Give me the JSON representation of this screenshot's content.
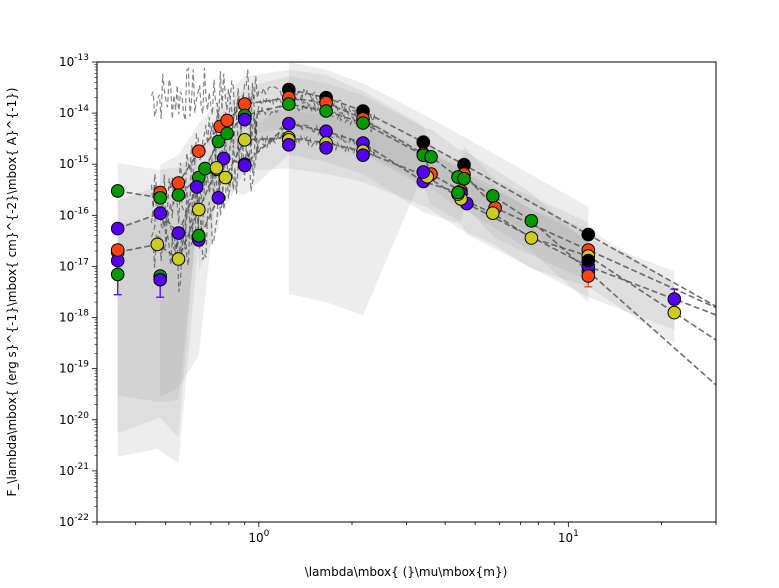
{
  "chart_data": {
    "type": "scatter",
    "title": "",
    "xlabel": "\\lambda\\mbox{ (}\\mu\\mbox{m})",
    "ylabel": "F_\\lambda\\mbox{ (erg s}^{-1}\\mbox{ cm}^{-2}\\mbox{ A}^{-1})",
    "x_scale": "log",
    "y_scale": "log",
    "xlim": [
      0.3,
      30
    ],
    "ylim": [
      1e-22,
      1e-13
    ],
    "x_ticks": [
      {
        "value": 1,
        "label": "10^0"
      },
      {
        "value": 10,
        "label": "10^1"
      }
    ],
    "y_ticks": [
      {
        "value": 1e-13,
        "label": "10^-13"
      },
      {
        "value": 1e-14,
        "label": "10^-14"
      },
      {
        "value": 1e-15,
        "label": "10^-15"
      },
      {
        "value": 1e-16,
        "label": "10^-16"
      },
      {
        "value": 1e-17,
        "label": "10^-17"
      },
      {
        "value": 1e-18,
        "label": "10^-18"
      },
      {
        "value": 1e-19,
        "label": "10^-19"
      },
      {
        "value": 1e-20,
        "label": "10^-20"
      },
      {
        "value": 1e-21,
        "label": "10^-21"
      },
      {
        "value": 1e-22,
        "label": "10^-22"
      }
    ],
    "grid": false,
    "legend": "none",
    "series": [
      {
        "color": "#000000",
        "x": [
          1.25,
          1.65,
          2.17,
          3.4,
          4.6,
          11.6
        ],
        "y": [
          2.9e-14,
          2e-14,
          1.1e-14,
          2.7e-15,
          9.8e-16,
          4.2e-17
        ]
      },
      {
        "color": "#ff4411",
        "x": [
          0.48,
          0.55,
          0.64,
          0.75,
          0.79,
          0.9,
          1.25,
          1.65,
          2.17,
          3.4,
          3.6,
          4.5,
          4.6,
          5.8,
          11.6
        ],
        "y": [
          2.8e-16,
          4.3e-16,
          1.8e-15,
          5.5e-15,
          7.2e-15,
          1.5e-14,
          2e-14,
          1.6e-14,
          7.7e-15,
          1.6e-15,
          6.4e-16,
          3e-16,
          6.4e-16,
          1.4e-16,
          2.1e-17
        ]
      },
      {
        "color": "#009900",
        "x": [
          0.35,
          0.48,
          0.55,
          0.64,
          0.67,
          0.74,
          0.79,
          0.9,
          1.25,
          1.65,
          2.17,
          3.4,
          3.6,
          4.4,
          4.6,
          5.7,
          7.6,
          11.6
        ],
        "y": [
          3e-16,
          2.2e-16,
          2.5e-16,
          5.5e-16,
          8.2e-16,
          2.8e-15,
          4e-15,
          9e-15,
          1.5e-14,
          1.1e-14,
          6.4e-15,
          1.5e-15,
          1.4e-15,
          5.6e-16,
          5.2e-16,
          2.4e-16,
          7.8e-17,
          8e-18
        ]
      },
      {
        "color": "#5500ee",
        "x": [
          0.35,
          0.48,
          0.55,
          0.63,
          0.64,
          0.74,
          0.77,
          0.9,
          1.25,
          1.65,
          2.17,
          3.4,
          4.5,
          4.7,
          11.6,
          22
        ],
        "y": [
          5.5e-17,
          1.1e-16,
          4.5e-17,
          3.6e-16,
          3.3e-17,
          2.2e-16,
          1.3e-15,
          1e-15,
          6.2e-15,
          4.4e-15,
          2.6e-15,
          4.6e-16,
          2.7e-16,
          1.7e-16,
          1e-17,
          2.3e-18
        ]
      },
      {
        "color": "#cccc22",
        "x": [
          0.35,
          0.47,
          0.55,
          0.64,
          0.73,
          0.78,
          0.9,
          1.25,
          1.65,
          2.17,
          3.5,
          4.5,
          5.7,
          7.6,
          11.6,
          22
        ],
        "y": [
          1.9e-17,
          2.7e-17,
          1.4e-17,
          1.3e-16,
          8e-16,
          5.5e-16,
          3e-15,
          3.3e-15,
          2.6e-15,
          1.8e-15,
          5.7e-16,
          2.1e-16,
          1.1e-16,
          3.6e-17,
          1.6e-17,
          1.25e-18
        ]
      }
    ],
    "extra_points": [
      {
        "color": "#009900",
        "x": 0.35,
        "y": 7e-18
      },
      {
        "color": "#009900",
        "x": 0.48,
        "y": 6.5e-18
      },
      {
        "color": "#5500ee",
        "x": 0.35,
        "y": 1.3e-17
      },
      {
        "color": "#5500ee",
        "x": 0.48,
        "y": 5.5e-18
      },
      {
        "color": "#ff4411",
        "x": 0.35,
        "y": 2.1e-17
      },
      {
        "color": "#ff4411",
        "x": 11.6,
        "y": 6.5e-18
      },
      {
        "color": "#000000",
        "x": 11.6,
        "y": 1.3e-17
      },
      {
        "color": "#009900",
        "x": 0.64,
        "y": 4e-17
      },
      {
        "color": "#cccc22",
        "x": 1.25,
        "y": 3e-15
      },
      {
        "color": "#5500ee",
        "x": 1.25,
        "y": 2.4e-15
      },
      {
        "color": "#5500ee",
        "x": 1.65,
        "y": 2.1e-15
      },
      {
        "color": "#5500ee",
        "x": 2.17,
        "y": 1.5e-15
      },
      {
        "color": "#5500ee",
        "x": 0.9,
        "y": 9.5e-16
      },
      {
        "color": "#5500ee",
        "x": 0.9,
        "y": 7.5e-15
      },
      {
        "color": "#5500ee",
        "x": 3.4,
        "y": 7e-16
      },
      {
        "color": "#cccc22",
        "x": 0.73,
        "y": 8.5e-16
      },
      {
        "color": "#cccc22",
        "x": 4.4,
        "y": 2.6e-16
      },
      {
        "color": "#009900",
        "x": 4.4,
        "y": 2.8e-16
      }
    ],
    "error_bars": [
      {
        "color": "#5500ee",
        "x": 0.35,
        "y": 1.3e-17,
        "ylow": 2.8e-18,
        "yhigh": 1.3e-17
      },
      {
        "color": "#5500ee",
        "x": 0.48,
        "y": 5.5e-18,
        "ylow": 2.5e-18,
        "yhigh": 5.5e-18
      },
      {
        "color": "#ff4411",
        "x": 11.6,
        "y": 6.5e-18,
        "ylow": 4e-18,
        "yhigh": 6.5e-18
      },
      {
        "color": "#5500ee",
        "x": 22,
        "y": 2.3e-18,
        "ylow": 1.8e-18,
        "yhigh": 3.6e-18
      }
    ]
  }
}
